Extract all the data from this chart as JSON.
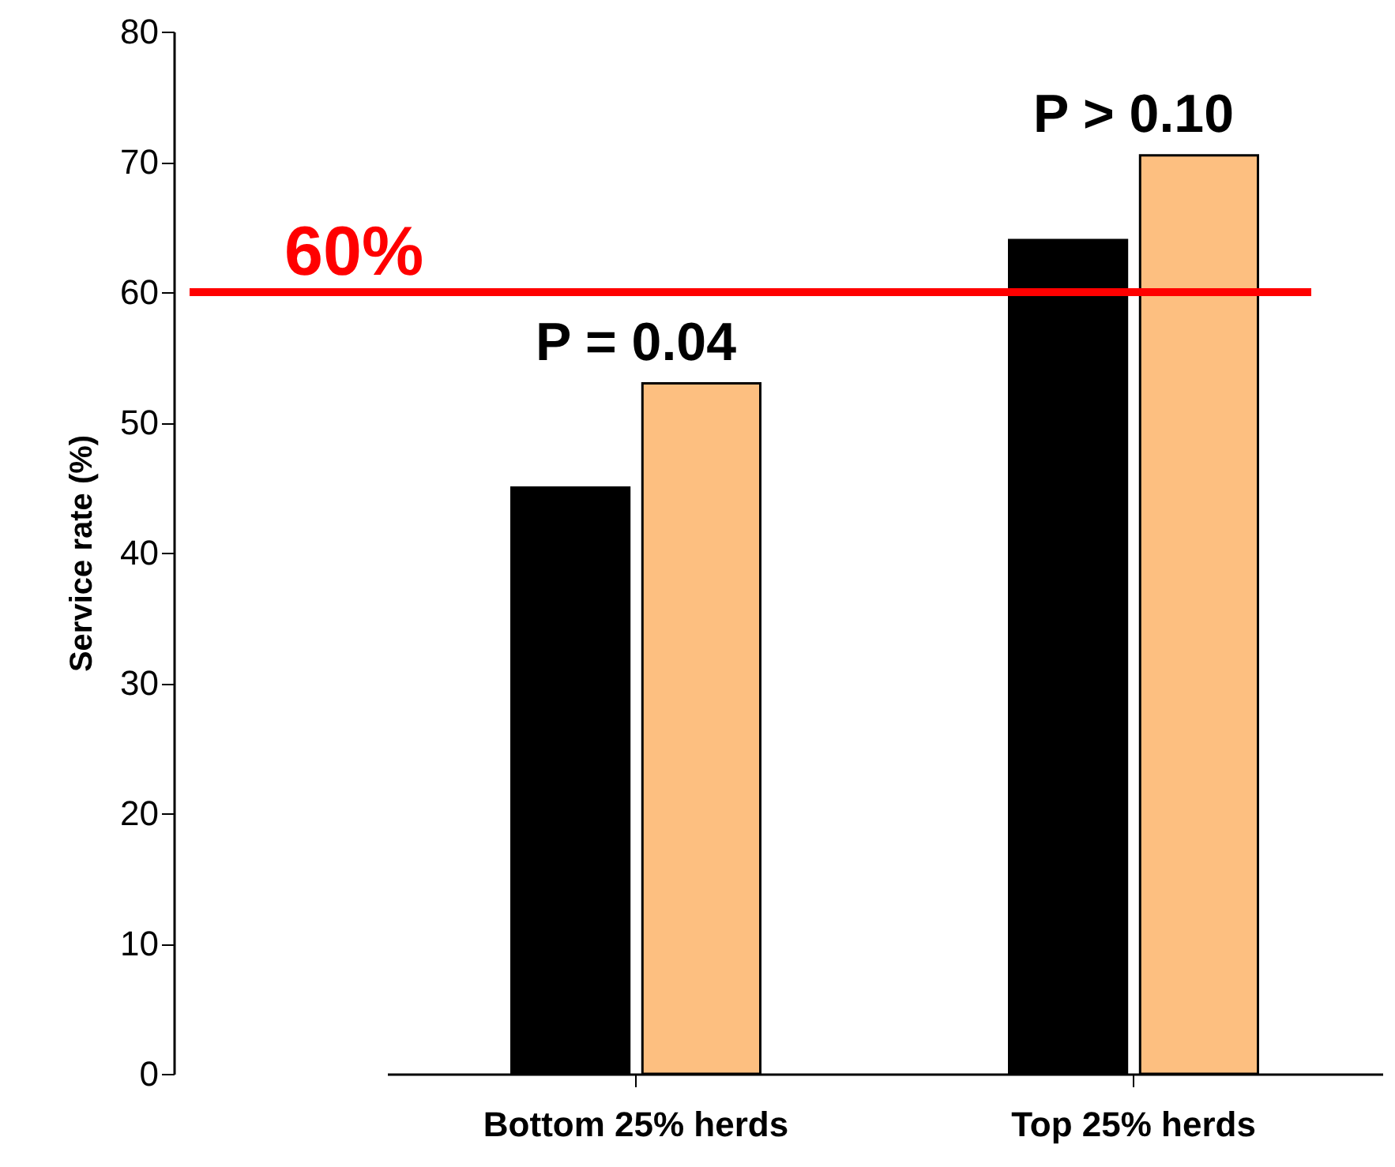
{
  "chart_data": {
    "type": "bar",
    "ylabel": "Service rate (%)",
    "categories": [
      "Bottom 25% herds",
      "Top 25% herds"
    ],
    "series": [
      {
        "color": "#000000",
        "values": [
          45,
          64
        ]
      },
      {
        "color": "#fdbf80",
        "values": [
          53,
          70.5
        ]
      }
    ],
    "ylim": [
      0,
      80
    ],
    "yticks": [
      0,
      10,
      20,
      30,
      40,
      50,
      60,
      70,
      80
    ],
    "grid": false,
    "ref_lines": [
      {
        "axis": "y",
        "value": 60,
        "label": "60%",
        "color": "#ff0000"
      }
    ],
    "annotations": [
      {
        "text": "P = 0.04",
        "x": "Bottom 25% herds",
        "y": 53
      },
      {
        "text": "P > 0.10",
        "x": "Top 25% herds",
        "y": 70.5
      }
    ]
  }
}
